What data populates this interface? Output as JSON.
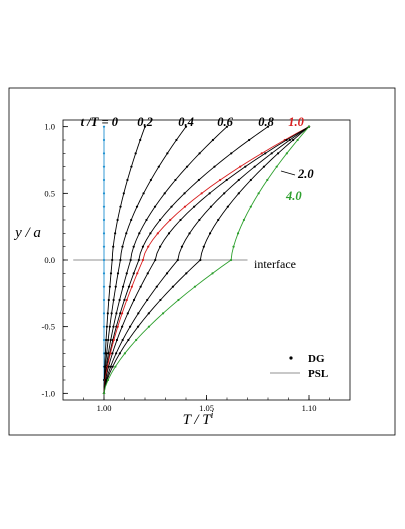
{
  "chart_data": {
    "type": "line",
    "xlabel": "T / T",
    "xlabel_sup": "i",
    "ylabel": "y / a",
    "xlim": [
      0.98,
      1.12
    ],
    "ylim": [
      -1.05,
      1.05
    ],
    "xticks": [
      "1.00",
      "1.05",
      "1.10"
    ],
    "yticks": [
      "1.0",
      "0.5",
      "0.0",
      "-0.5",
      "-1.0"
    ],
    "time_prefix": "t /T = ",
    "time_labels": [
      "0",
      "0.2",
      "0.4",
      "0.6",
      "0.8",
      "1.0",
      "2.0",
      "4.0"
    ],
    "interface_label": "interface",
    "legend": {
      "position": "bottom-right",
      "dg_label": "DG",
      "psl_label": "PSL"
    },
    "colors": {
      "t0": "#1e90d0",
      "t1": "#d81e1e",
      "t4": "#2ea02e",
      "default": "#000000",
      "interface": "#909090"
    },
    "series": [
      {
        "t": "0",
        "bottom": 1.0,
        "mid": 1.0,
        "top": 1.0,
        "color": "#1e90d0"
      },
      {
        "t": "0.2",
        "bottom": 1.0,
        "mid": 1.004,
        "top": 1.02
      },
      {
        "t": "0.4",
        "bottom": 1.0,
        "mid": 1.008,
        "top": 1.04
      },
      {
        "t": "0.6",
        "bottom": 1.0,
        "mid": 1.013,
        "top": 1.06
      },
      {
        "t": "0.8",
        "bottom": 1.0,
        "mid": 1.017,
        "top": 1.08
      },
      {
        "t": "1.0",
        "bottom": 1.0,
        "mid": 1.019,
        "top": 1.1,
        "color": "#d81e1e"
      },
      {
        "t": "",
        "bottom": 1.0,
        "mid": 1.025,
        "top": 1.1
      },
      {
        "t": "",
        "bottom": 1.0,
        "mid": 1.036,
        "top": 1.1
      },
      {
        "t": "2.0",
        "bottom": 1.0,
        "mid": 1.047,
        "top": 1.1
      },
      {
        "t": "4.0",
        "bottom": 1.0,
        "mid": 1.062,
        "top": 1.1,
        "color": "#2ea02e"
      }
    ]
  }
}
